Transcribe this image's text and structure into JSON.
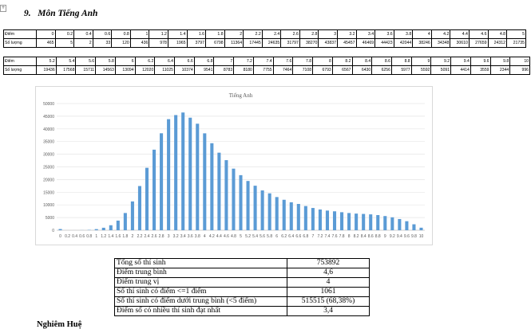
{
  "section": {
    "number": "9.",
    "title": "Môn Tiếng Anh"
  },
  "score_table_1": {
    "row_label_score": "Điểm",
    "row_label_count": "Số lượng",
    "scores": [
      "0",
      "0.2",
      "0.4",
      "0.6",
      "0.8",
      "1",
      "1.2",
      "1.4",
      "1.6",
      "1.8",
      "2",
      "2.2",
      "2.4",
      "2.6",
      "2.8",
      "3",
      "3.2",
      "3.4",
      "3.6",
      "3.8",
      "4",
      "4.2",
      "4.4",
      "4.6",
      "4.8",
      "5"
    ],
    "counts": [
      "465",
      "5",
      "2",
      "33",
      "120",
      "436",
      "978",
      "1965",
      "3797",
      "6798",
      "11364",
      "17445",
      "24635",
      "31797",
      "38270",
      "43837",
      "45457",
      "46469",
      "44423",
      "42044",
      "38246",
      "34348",
      "30610",
      "27659",
      "24312",
      "21735"
    ]
  },
  "score_table_2": {
    "row_label_score": "Điểm",
    "row_label_count": "Số lượng",
    "scores": [
      "5.2",
      "5.4",
      "5.6",
      "5.8",
      "6",
      "6.2",
      "6.4",
      "6.6",
      "6.8",
      "7",
      "7.2",
      "7.4",
      "7.6",
      "7.8",
      "8",
      "8.2",
      "8.4",
      "8.6",
      "8.8",
      "9",
      "9.2",
      "9.4",
      "9.6",
      "9.8",
      "10"
    ],
    "counts": [
      "19436",
      "17568",
      "15711",
      "14563",
      "13094",
      "12020",
      "11025",
      "10374",
      "9541",
      "8783",
      "8180",
      "7755",
      "7464",
      "7108",
      "6793",
      "6567",
      "6430",
      "6256",
      "5977",
      "5592",
      "5091",
      "4414",
      "3559",
      "2344",
      "996"
    ]
  },
  "chart_data": {
    "type": "bar",
    "title": "Tiếng Anh",
    "xlabel": "",
    "ylabel": "",
    "ylim": [
      0,
      50000
    ],
    "yticks": [
      "0",
      "5000",
      "10000",
      "15000",
      "20000",
      "25000",
      "30000",
      "35000",
      "40000",
      "45000",
      "50000"
    ],
    "grid": true,
    "legend": "none",
    "color": "#5b9bd5",
    "categories": [
      "0",
      "0.2",
      "0.4",
      "0.6",
      "0.8",
      "1",
      "1.2",
      "1.4",
      "1.6",
      "1.8",
      "2",
      "2.2",
      "2.4",
      "2.6",
      "2.8",
      "3",
      "3.2",
      "3.4",
      "3.6",
      "3.8",
      "4",
      "4.2",
      "4.4",
      "4.6",
      "4.8",
      "5",
      "5.2",
      "5.4",
      "5.6",
      "5.8",
      "6",
      "6.2",
      "6.4",
      "6.6",
      "6.8",
      "7",
      "7.2",
      "7.4",
      "7.6",
      "7.8",
      "8",
      "8.2",
      "8.4",
      "8.6",
      "8.8",
      "9",
      "9.2",
      "9.4",
      "9.6",
      "9.8",
      "10"
    ],
    "values": [
      465,
      5,
      2,
      33,
      120,
      436,
      978,
      1965,
      3797,
      6798,
      11364,
      17445,
      24635,
      31797,
      38270,
      43837,
      45457,
      46469,
      44423,
      42044,
      38246,
      34348,
      30610,
      27659,
      24312,
      21735,
      19436,
      17568,
      15711,
      14563,
      13094,
      12020,
      11025,
      10374,
      9541,
      8783,
      8180,
      7755,
      7464,
      7108,
      6793,
      6567,
      6430,
      6256,
      5977,
      5592,
      5091,
      4414,
      3559,
      2344,
      996
    ]
  },
  "stats": [
    {
      "label": "Tổng số thí sinh",
      "value": "753892"
    },
    {
      "label": "Điểm trung bình",
      "value": "4,6"
    },
    {
      "label": "Điểm trung vị",
      "value": "4"
    },
    {
      "label": "Số thí sinh có điểm <=1 điểm",
      "value": "1061"
    },
    {
      "label": "Số thí sinh có điểm dưới trung bình (<5 điểm)",
      "value": "515515 (68,38%)"
    },
    {
      "label": "Điểm số có nhiều thí sinh đạt nhất",
      "value": "3,4"
    }
  ],
  "footer_name": "Nghiêm Huệ"
}
